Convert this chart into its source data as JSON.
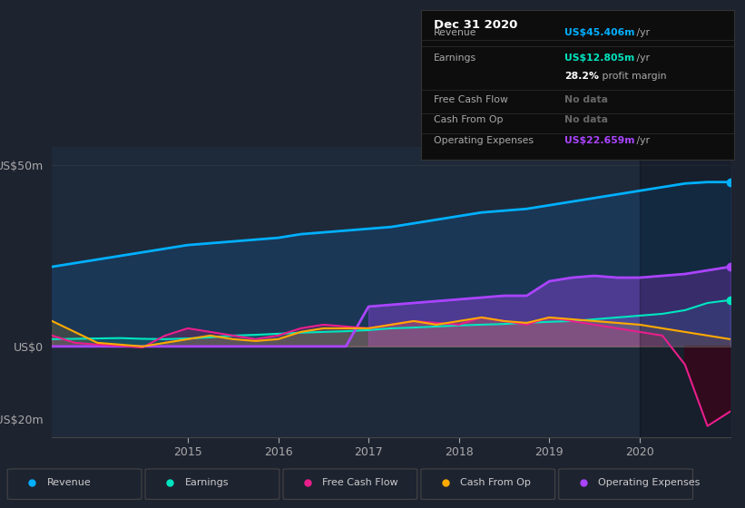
{
  "bg_color": "#1e2330",
  "chart_bg": "#1e2a3a",
  "title": "Dec 31 2020",
  "ylim": [
    -25,
    55
  ],
  "yticks": [
    -20,
    0,
    50
  ],
  "ytick_labels": [
    "-US$20m",
    "US$0",
    "US$50m"
  ],
  "xmin": 2013.5,
  "xmax": 2021.0,
  "xticks": [
    2015,
    2016,
    2017,
    2018,
    2019,
    2020
  ],
  "colors": {
    "revenue": "#00b0ff",
    "earnings": "#00e5c0",
    "free_cash_flow": "#e91e8c",
    "cash_from_op": "#ffaa00",
    "operating_expenses": "#aa44ff"
  },
  "legend": [
    {
      "label": "Revenue",
      "color": "#00b0ff"
    },
    {
      "label": "Earnings",
      "color": "#00e5c0"
    },
    {
      "label": "Free Cash Flow",
      "color": "#e91e8c"
    },
    {
      "label": "Cash From Op",
      "color": "#ffaa00"
    },
    {
      "label": "Operating Expenses",
      "color": "#aa44ff"
    }
  ],
  "t": [
    2013.5,
    2013.75,
    2014.0,
    2014.25,
    2014.5,
    2014.75,
    2015.0,
    2015.25,
    2015.5,
    2015.75,
    2016.0,
    2016.25,
    2016.5,
    2016.75,
    2017.0,
    2017.25,
    2017.5,
    2017.75,
    2018.0,
    2018.25,
    2018.5,
    2018.75,
    2019.0,
    2019.25,
    2019.5,
    2019.75,
    2020.0,
    2020.25,
    2020.5,
    2020.75,
    2021.0
  ],
  "revenue": [
    22,
    23,
    24,
    25,
    26,
    27,
    28,
    28.5,
    29,
    29.5,
    30,
    31,
    31.5,
    32,
    32.5,
    33,
    34,
    35,
    36,
    37,
    37.5,
    38,
    39,
    40,
    41,
    42,
    43,
    44,
    45,
    45.4,
    45.4
  ],
  "earnings": [
    2,
    2.1,
    2.2,
    2.3,
    2.1,
    2.0,
    2.2,
    2.5,
    3.0,
    3.2,
    3.5,
    3.8,
    4.0,
    4.2,
    4.5,
    5.0,
    5.2,
    5.5,
    5.8,
    6.0,
    6.2,
    6.5,
    6.8,
    7.0,
    7.5,
    8.0,
    8.5,
    9.0,
    10.0,
    12.0,
    12.8
  ],
  "operating_expenses": [
    0,
    0,
    0,
    0,
    0,
    0,
    0,
    0,
    0,
    0,
    0,
    0,
    0,
    0,
    11,
    11.5,
    12,
    12.5,
    13,
    13.5,
    14,
    14,
    18,
    19,
    19.5,
    19,
    19,
    19.5,
    20,
    21,
    22
  ],
  "free_cash_flow": [
    3,
    1,
    0.5,
    0.2,
    -0.3,
    3,
    5,
    4,
    3,
    2,
    3,
    5,
    6,
    5.5,
    5,
    6,
    7,
    6.5,
    6,
    8,
    7,
    6,
    8,
    7,
    6,
    5,
    4,
    3,
    -5,
    -22,
    -18
  ],
  "cash_from_op": [
    7,
    4,
    1,
    0.5,
    0,
    1,
    2,
    3,
    2,
    1.5,
    2,
    4,
    5,
    5,
    5,
    6,
    7,
    6,
    7,
    8,
    7,
    6.5,
    8,
    7.5,
    7,
    6.5,
    6,
    5,
    4,
    3,
    2
  ]
}
